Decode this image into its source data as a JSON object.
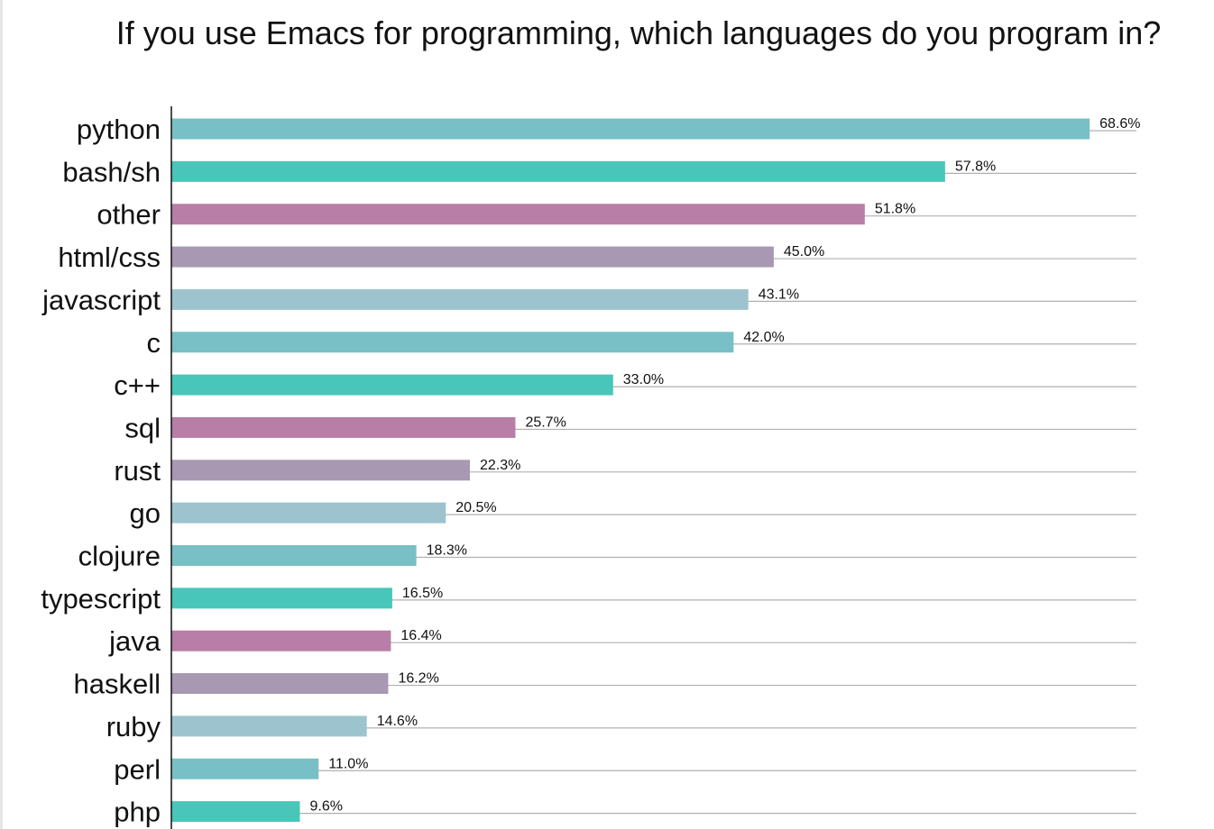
{
  "chart_data": {
    "type": "bar",
    "orientation": "horizontal",
    "title": "If you use Emacs for programming, which languages do you program in?",
    "xlabel": "",
    "ylabel": "",
    "xlim": [
      0,
      70
    ],
    "grid": "horizontal lines only",
    "legend": "none",
    "value_format": "{v}%",
    "categories": [
      "python",
      "bash/sh",
      "other",
      "html/css",
      "javascript",
      "c",
      "c++",
      "sql",
      "rust",
      "go",
      "clojure",
      "typescript",
      "java",
      "haskell",
      "ruby",
      "perl",
      "php"
    ],
    "values": [
      68.6,
      57.8,
      51.8,
      45.0,
      43.1,
      42.0,
      33.0,
      25.7,
      22.3,
      20.5,
      18.3,
      16.5,
      16.4,
      16.2,
      14.6,
      11.0,
      9.6
    ],
    "value_labels": [
      "68.6%",
      "57.8%",
      "51.8%",
      "45.0%",
      "43.1%",
      "42.0%",
      "33.0%",
      "25.7%",
      "22.3%",
      "20.5%",
      "18.3%",
      "16.5%",
      "16.4%",
      "16.2%",
      "14.6%",
      "11.0%",
      "9.6%"
    ],
    "bar_colors": [
      "#78c0c5",
      "#48c6b9",
      "#b87ea7",
      "#a898b2",
      "#9dc4ce"
    ],
    "grid_color": "#b0b0b0",
    "axis_color": "#111111"
  }
}
